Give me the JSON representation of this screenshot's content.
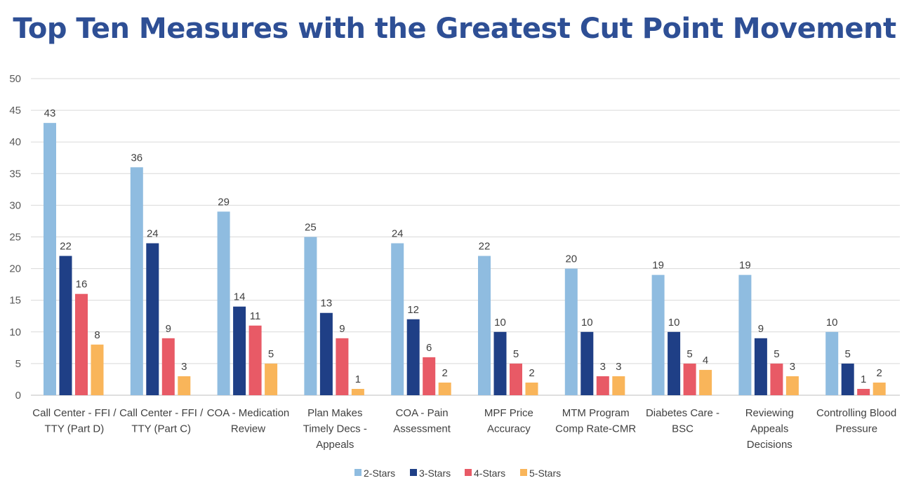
{
  "title": "Top Ten Measures with the Greatest Cut Point Movement",
  "chart_data": {
    "type": "bar",
    "title": "Top Ten Measures with the Greatest Cut Point Movement",
    "xlabel": "",
    "ylabel": "",
    "ylim": [
      0,
      50
    ],
    "yticks": [
      0,
      5,
      10,
      15,
      20,
      25,
      30,
      35,
      40,
      45,
      50
    ],
    "grid": true,
    "legend_position": "bottom-center",
    "categories": [
      [
        "Call Center - FFI /",
        "TTY (Part D)"
      ],
      [
        "Call Center - FFI /",
        "TTY (Part C)"
      ],
      [
        "COA - Medication",
        "Review"
      ],
      [
        "Plan Makes",
        "Timely Decs -",
        "Appeals"
      ],
      [
        "COA - Pain",
        "Assessment"
      ],
      [
        "MPF Price",
        "Accuracy"
      ],
      [
        "MTM Program",
        "Comp Rate-CMR"
      ],
      [
        "Diabetes Care -",
        "BSC"
      ],
      [
        "Reviewing",
        "Appeals",
        "Decisions"
      ],
      [
        "Controlling Blood",
        "Pressure"
      ]
    ],
    "series": [
      {
        "name": "2-Stars",
        "color": "#8FBCE0",
        "values": [
          43,
          36,
          29,
          25,
          24,
          22,
          20,
          19,
          19,
          10
        ]
      },
      {
        "name": "3-Stars",
        "color": "#1F3F86",
        "values": [
          22,
          24,
          14,
          13,
          12,
          10,
          10,
          10,
          9,
          5
        ]
      },
      {
        "name": "4-Stars",
        "color": "#E85A66",
        "values": [
          16,
          9,
          11,
          9,
          6,
          5,
          3,
          5,
          5,
          1
        ]
      },
      {
        "name": "5-Stars",
        "color": "#F9B55A",
        "values": [
          8,
          3,
          5,
          1,
          2,
          2,
          3,
          4,
          3,
          2
        ]
      }
    ]
  }
}
